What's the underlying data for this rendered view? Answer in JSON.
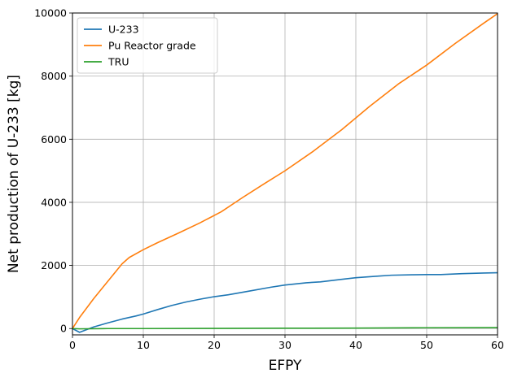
{
  "chart_data": {
    "type": "line",
    "title": "",
    "xlabel": "EFPY",
    "ylabel": "Net production of U-233 [kg]",
    "xlim": [
      0,
      60
    ],
    "ylim": [
      -200,
      10000
    ],
    "xticks": [
      0,
      10,
      20,
      30,
      40,
      50,
      60
    ],
    "yticks": [
      0,
      2000,
      4000,
      6000,
      8000,
      10000
    ],
    "x_tick_labels": [
      "0",
      "10",
      "20",
      "30",
      "40",
      "50",
      "60"
    ],
    "y_tick_labels": [
      "0",
      "2000",
      "4000",
      "6000",
      "8000",
      "10000"
    ],
    "grid": true,
    "legend_position": "top-left",
    "series": [
      {
        "name": "U-233",
        "color": "#1f77b4",
        "x": [
          0,
          1,
          3,
          5,
          7,
          9,
          10,
          12,
          14,
          16,
          18,
          20,
          22,
          25,
          28,
          30,
          33,
          35,
          38,
          40,
          43,
          45,
          48,
          50,
          52,
          55,
          58,
          60
        ],
        "y": [
          0,
          -120,
          50,
          180,
          300,
          400,
          460,
          600,
          730,
          840,
          930,
          1010,
          1070,
          1190,
          1310,
          1380,
          1450,
          1480,
          1560,
          1610,
          1660,
          1690,
          1705,
          1710,
          1710,
          1740,
          1760,
          1770
        ]
      },
      {
        "name": "Pu Reactor grade",
        "color": "#ff7f0e",
        "x": [
          0,
          1,
          3,
          5,
          7,
          8,
          10,
          12,
          15,
          18,
          21,
          24,
          27,
          30,
          34,
          38,
          42,
          46,
          50,
          54,
          58,
          60
        ],
        "y": [
          0,
          350,
          950,
          1500,
          2050,
          2250,
          2500,
          2720,
          3030,
          3350,
          3700,
          4150,
          4580,
          5000,
          5620,
          6300,
          7050,
          7750,
          8350,
          9030,
          9670,
          9980
        ]
      },
      {
        "name": "TRU",
        "color": "#2ca02c",
        "x": [
          0,
          1,
          5,
          10,
          20,
          30,
          40,
          50,
          60
        ],
        "y": [
          0,
          -10,
          0,
          0,
          5,
          10,
          15,
          25,
          30
        ]
      }
    ]
  }
}
